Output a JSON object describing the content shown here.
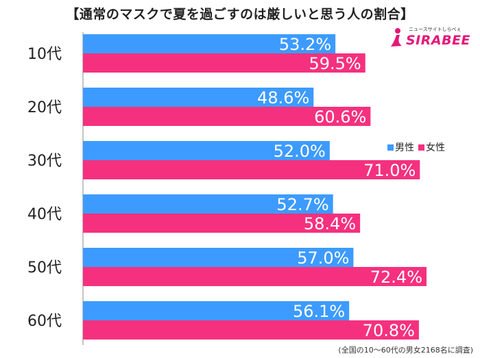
{
  "title": "【通常のマスクで夏を過ごすのは厳しいと思う人の割合】",
  "logo": {
    "tagline": "ニュースサイトしらべぇ",
    "name": "SIRABEE"
  },
  "legend": [
    "男性",
    "女性"
  ],
  "note": "(全国の10～60代の男女2168名に調査)",
  "colors": {
    "male": "#3d9bff",
    "female": "#f5317f"
  },
  "chart_data": {
    "type": "bar",
    "orientation": "horizontal",
    "title": "【通常のマスクで夏を過ごすのは厳しいと思う人の割合】",
    "categories": [
      "10代",
      "20代",
      "30代",
      "40代",
      "50代",
      "60代"
    ],
    "series": [
      {
        "name": "男性",
        "values": [
          53.2,
          48.6,
          52.0,
          52.7,
          57.0,
          56.1
        ]
      },
      {
        "name": "女性",
        "values": [
          59.5,
          60.6,
          71.0,
          58.4,
          72.4,
          70.8
        ]
      }
    ],
    "value_labels": {
      "男性": [
        "53.2%",
        "48.6%",
        "52.0%",
        "52.7%",
        "57.0%",
        "56.1%"
      ],
      "女性": [
        "59.5%",
        "60.6%",
        "71.0%",
        "58.4%",
        "72.4%",
        "70.8%"
      ]
    },
    "xlim": [
      0,
      100
    ],
    "xlabel": "",
    "ylabel": "",
    "grid": false,
    "legend_position": "right"
  }
}
